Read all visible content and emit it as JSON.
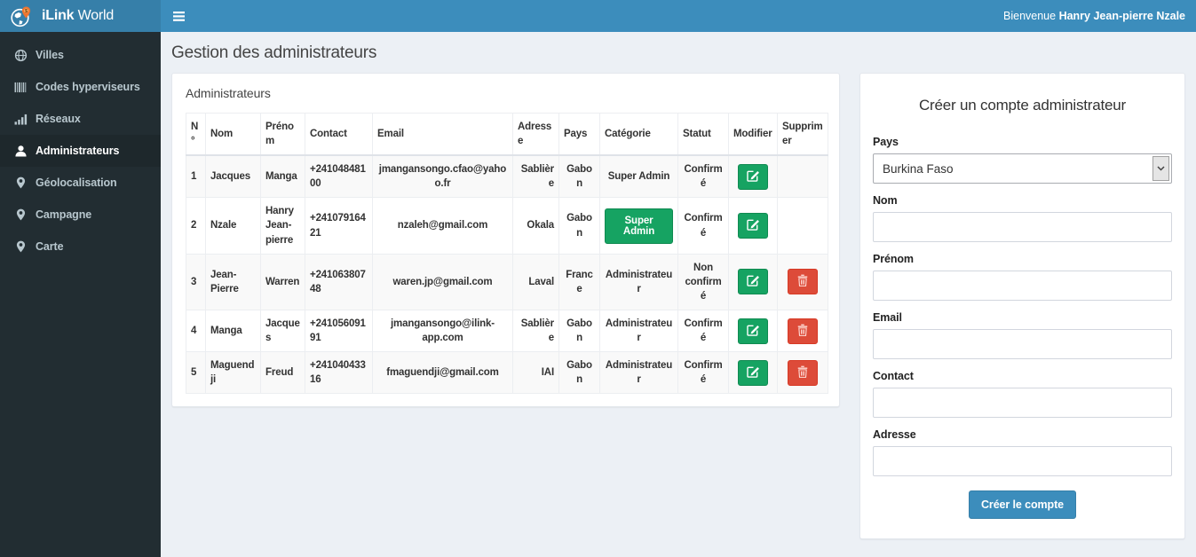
{
  "brand": {
    "title_bold": "iLink",
    "title_rest": "World",
    "logo_icon": "globe-pin-icon"
  },
  "navbar": {
    "welcome_prefix": "Bienvenue ",
    "welcome_name": "Hanry Jean-pierre Nzale",
    "menu_icon": "hamburger-icon"
  },
  "sidebar": {
    "items": [
      {
        "label": "Villes",
        "icon": "globe-icon",
        "active": false
      },
      {
        "label": "Codes hyperviseurs",
        "icon": "barcode-icon",
        "active": false
      },
      {
        "label": "Réseaux",
        "icon": "signal-icon",
        "active": false
      },
      {
        "label": "Administrateurs",
        "icon": "user-icon",
        "active": true
      },
      {
        "label": "Géolocalisation",
        "icon": "map-marker-icon",
        "active": false
      },
      {
        "label": "Campagne",
        "icon": "map-marker-icon",
        "active": false
      },
      {
        "label": "Carte",
        "icon": "map-marker-icon",
        "active": false
      }
    ]
  },
  "page": {
    "title": "Gestion des administrateurs"
  },
  "panel": {
    "title": "Administrateurs",
    "table": {
      "headers": [
        "N°",
        "Nom",
        "Prénom",
        "Contact",
        "Email",
        "Adresse",
        "Pays",
        "Catégorie",
        "Statut",
        "Modifier",
        "Supprimer"
      ],
      "rows": [
        {
          "num": "1",
          "nom": "Jacques",
          "prenom": "Manga",
          "contact": "+24104848100",
          "email": "jmangansongo.cfao@yahoo.fr",
          "adresse": "Sablière",
          "pays": "Gabon",
          "categorie": "Super Admin",
          "categorie_variant": "text",
          "statut": "Confirmé",
          "can_delete": false
        },
        {
          "num": "2",
          "nom": "Nzale",
          "prenom": "Hanry Jean-pierre",
          "contact": "+24107916421",
          "email": "nzaleh@gmail.com",
          "adresse": "Okala",
          "pays": "Gabon",
          "categorie": "Super Admin",
          "categorie_variant": "button",
          "statut": "Confirmé",
          "can_delete": false
        },
        {
          "num": "3",
          "nom": "Jean-Pierre",
          "prenom": "Warren",
          "contact": "+24106380748",
          "email": "waren.jp@gmail.com",
          "adresse": "Laval",
          "pays": "France",
          "categorie": "Administrateur",
          "categorie_variant": "text",
          "statut": "Non confirmé",
          "can_delete": true
        },
        {
          "num": "4",
          "nom": "Manga",
          "prenom": "Jacques",
          "contact": "+24105609191",
          "email": "jmangansongo@ilink-app.com",
          "adresse": "Sablière",
          "pays": "Gabon",
          "categorie": "Administrateur",
          "categorie_variant": "text",
          "statut": "Confirmé",
          "can_delete": true
        },
        {
          "num": "5",
          "nom": "Maguendji",
          "prenom": "Freud",
          "contact": "+24104043316",
          "email": "fmaguendji@gmail.com",
          "adresse": "IAI",
          "pays": "Gabon",
          "categorie": "Administrateur",
          "categorie_variant": "text",
          "statut": "Confirmé",
          "can_delete": true
        }
      ],
      "edit_icon": "edit-icon",
      "delete_icon": "trash-icon"
    }
  },
  "form": {
    "title": "Créer un compte administrateur",
    "fields": [
      {
        "label": "Pays",
        "type": "select",
        "value": "Burkina Faso"
      },
      {
        "label": "Nom",
        "type": "text",
        "value": "",
        "placeholder": ""
      },
      {
        "label": "Prénom",
        "type": "text",
        "value": "",
        "placeholder": ""
      },
      {
        "label": "Email",
        "type": "text",
        "value": "",
        "placeholder": ""
      },
      {
        "label": "Contact",
        "type": "text",
        "value": "",
        "placeholder": ""
      },
      {
        "label": "Adresse",
        "type": "text",
        "value": "",
        "placeholder": ""
      }
    ],
    "submit_label": "Créer le compte"
  },
  "colors": {
    "navbar": "#3c8dbc",
    "logo_bg": "#367fa9",
    "sidebar_bg": "#222d32",
    "sidebar_text": "#b8c7ce",
    "sidebar_active_bg": "#1e282c",
    "content_bg": "#ecf0f5",
    "success_green": "#16a362",
    "danger_red": "#dd4b39",
    "primary_button": "#3c8dbc",
    "pin_orange": "#ee7430"
  }
}
